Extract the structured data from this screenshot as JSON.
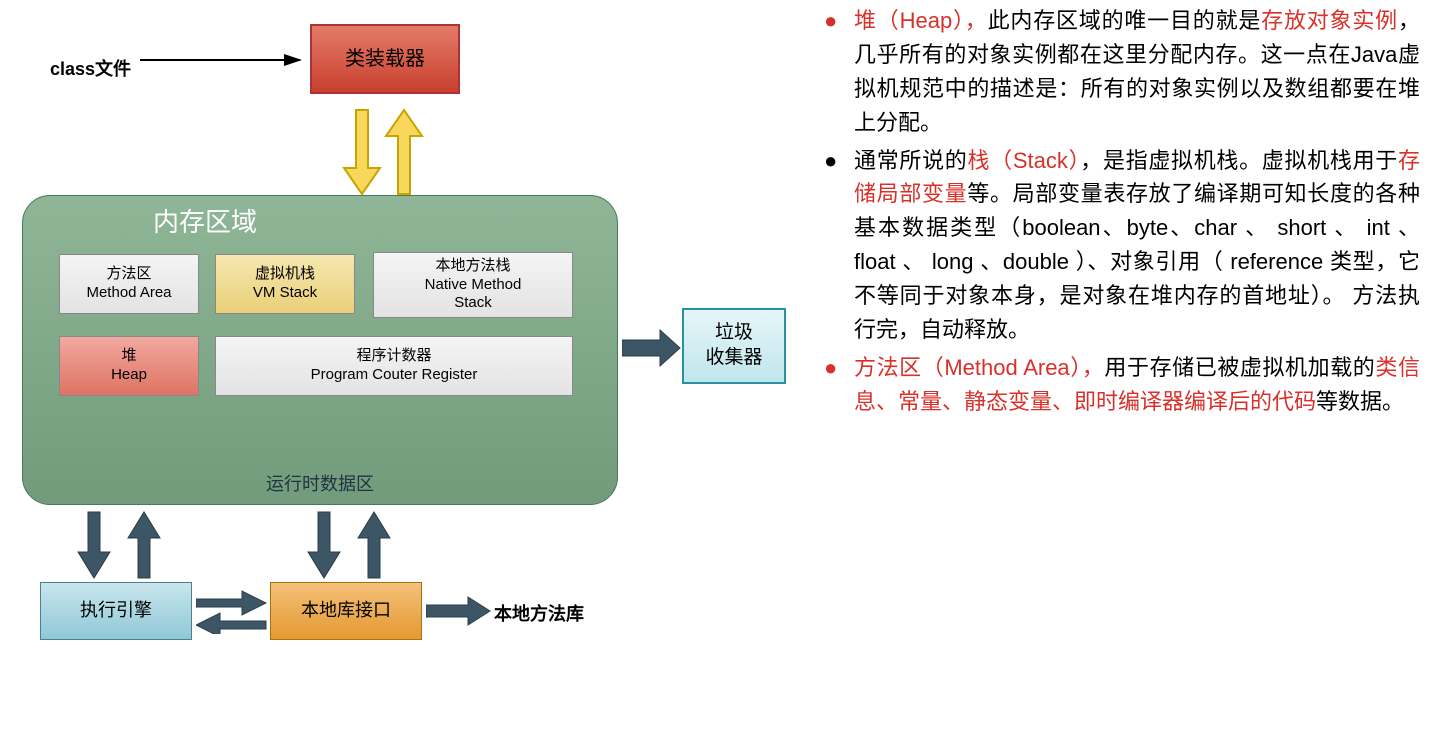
{
  "diagram": {
    "classfile": "class文件",
    "classloader": "类装载器",
    "memarea_title": "内存区域",
    "runtime_label": "运行时数据区",
    "method_area_l1": "方法区",
    "method_area_l2": "Method Area",
    "vmstack_l1": "虚拟机栈",
    "vmstack_l2": "VM Stack",
    "native_ms_l1": "本地方法栈",
    "native_ms_l2": "Native Method",
    "native_ms_l3": "Stack",
    "heap_l1": "堆",
    "heap_l2": "Heap",
    "pcr_l1": "程序计数器",
    "pcr_l2": "Program Couter Register",
    "gc_l1": "垃圾",
    "gc_l2": "收集器",
    "exec_engine": "执行引擎",
    "native_if": "本地库接口",
    "native_lib": "本地方法库",
    "colors": {
      "classloader_bg": "#d25a47",
      "memarea_bg": "#7fa688",
      "method_area_bg": "#ececec",
      "vmstack_bg": "#efd98c",
      "native_ms_bg": "#ececec",
      "heap_bg": "#e88a7c",
      "pcr_bg": "#ececec",
      "gc_bg": "#cdeaf0",
      "exec_bg": "#a6d3df",
      "nativeif_bg": "#eba64a",
      "arrow_dark": "#3d5666",
      "arrow_yellow": "#f7d85b",
      "text_red": "#d8302a"
    }
  },
  "bullets": [
    {
      "color": "red",
      "spans": [
        {
          "t": "堆（Heap），",
          "r": true
        },
        {
          "t": "此内存区域的唯一目的就是",
          "r": false
        },
        {
          "t": "存放对象实例",
          "r": true
        },
        {
          "t": "，几乎所有的对象实例都在这里分配内存。这一点在Java虚拟机规范中的描述是：所有的对象实例以及数组都要在堆上分配。",
          "r": false
        }
      ]
    },
    {
      "color": "black",
      "spans": [
        {
          "t": "通常所说的",
          "r": false
        },
        {
          "t": "栈（Stack）",
          "r": true
        },
        {
          "t": "，是指虚拟机栈。虚拟机栈用于",
          "r": false
        },
        {
          "t": "存储局部变量",
          "r": true
        },
        {
          "t": "等。局部变量表存放了编译期可知长度的各种基本数据类型（boolean、byte、char 、 short 、 int 、 float 、 long 、double ）、对象引用（ reference 类型，它不等同于对象本身，是对象在堆内存的首地址）。 方法执行完，自动释放。",
          "r": false
        }
      ]
    },
    {
      "color": "red",
      "spans": [
        {
          "t": "方法区（Method Area），",
          "r": true
        },
        {
          "t": "用于存储已被虚拟机加载的",
          "r": false
        },
        {
          "t": "类信息、常量、静态变量、即时编译器编译后的代码",
          "r": true
        },
        {
          "t": "等数据。",
          "r": false
        }
      ]
    }
  ]
}
